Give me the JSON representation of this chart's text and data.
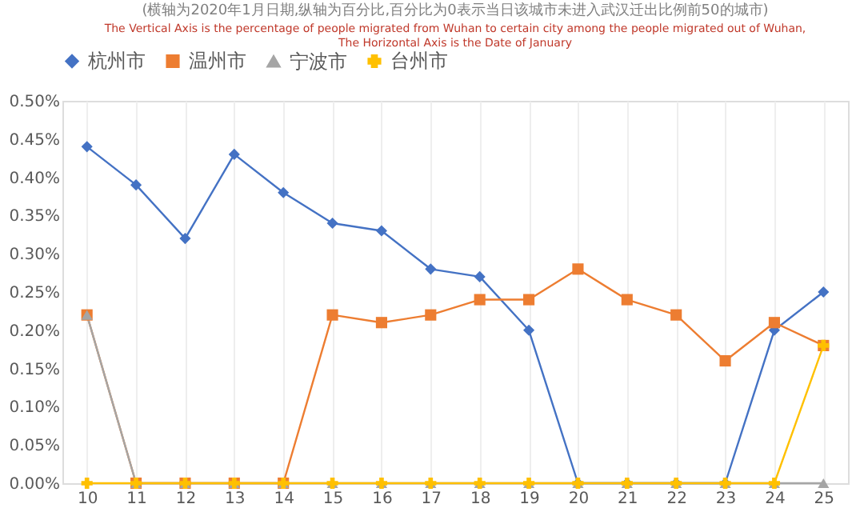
{
  "chart_data": {
    "type": "line",
    "title": "(横轴为2020年1月日期,纵轴为百分比,百分比为0表示当日该城市未进入武汉迁出比例前50的城市)",
    "subtitle": [
      "The Vertical Axis is the percentage of people migrated from Wuhan to certain city  among the people migrated out of Wuhan,",
      "The Horizontal Axis is the Date of January"
    ],
    "categories": [
      "10",
      "11",
      "12",
      "13",
      "14",
      "15",
      "16",
      "17",
      "18",
      "19",
      "20",
      "21",
      "22",
      "23",
      "24",
      "25"
    ],
    "series": [
      {
        "name": "杭州市",
        "color": "#4472c4",
        "marker": "diamond",
        "values": [
          0.44,
          0.39,
          0.32,
          0.43,
          0.38,
          0.34,
          0.33,
          0.28,
          0.27,
          0.2,
          0,
          0,
          0,
          0,
          0.2,
          0.25
        ]
      },
      {
        "name": "温州市",
        "color": "#ed7d31",
        "marker": "square",
        "values": [
          0.22,
          0,
          0,
          0,
          0,
          0.22,
          0.21,
          0.22,
          0.24,
          0.24,
          0.28,
          0.24,
          0.22,
          0.16,
          0.21,
          0.18
        ]
      },
      {
        "name": "宁波市",
        "color": "#a5a5a5",
        "marker": "triangle",
        "values": [
          0.22,
          0,
          0,
          0,
          0,
          0,
          0,
          0,
          0,
          0,
          0,
          0,
          0,
          0,
          0,
          0
        ]
      },
      {
        "name": "台州市",
        "color": "#ffc000",
        "marker": "cross",
        "values": [
          0,
          0,
          0,
          0,
          0,
          0,
          0,
          0,
          0,
          0,
          0,
          0,
          0,
          0,
          0,
          0.18
        ]
      }
    ],
    "ylim": [
      0,
      0.5
    ],
    "yticks": [
      {
        "value": 0,
        "label": "0.00%"
      },
      {
        "value": 0.05,
        "label": "0.05%"
      },
      {
        "value": 0.1,
        "label": "0.10%"
      },
      {
        "value": 0.15,
        "label": "0.15%"
      },
      {
        "value": 0.2,
        "label": "0.20%"
      },
      {
        "value": 0.25,
        "label": "0.25%"
      },
      {
        "value": 0.3,
        "label": "0.30%"
      },
      {
        "value": 0.35,
        "label": "0.35%"
      },
      {
        "value": 0.4,
        "label": "0.40%"
      },
      {
        "value": 0.45,
        "label": "0.45%"
      },
      {
        "value": 0.5,
        "label": "0.50%"
      }
    ],
    "grid": "x",
    "legend": "top"
  }
}
